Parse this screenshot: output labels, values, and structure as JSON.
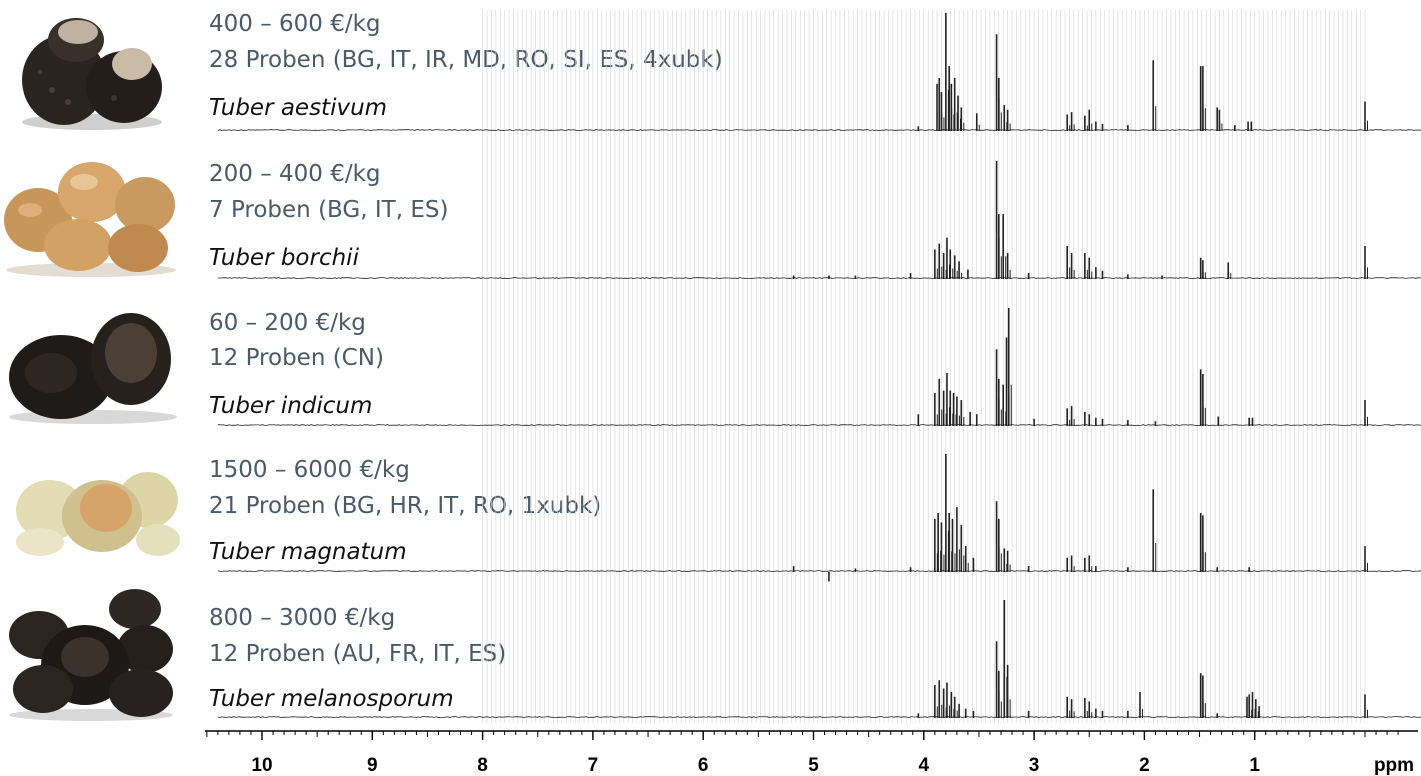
{
  "samples": [
    {
      "species": "Tuber aestivum",
      "price": "400 – 600 €/kg",
      "samples": "28 Proben (BG, IT, IR, MD, RO, SI, ES, 4xubk)",
      "photo": "dark-black-truffle-icon"
    },
    {
      "species": "Tuber borchii",
      "price": "200 – 400 €/kg",
      "samples": "7 Proben (BG, IT, ES)",
      "photo": "light-tan-truffle-icon"
    },
    {
      "species": "Tuber indicum",
      "price": "60 – 200 €/kg",
      "samples": "12 Proben (CN)",
      "photo": "dark-black-truffle-icon"
    },
    {
      "species": "Tuber magnatum",
      "price": "1500 – 6000 €/kg",
      "samples": "21 Proben (BG, HR, IT, RO, 1xubk)",
      "photo": "pale-white-truffle-icon"
    },
    {
      "species": "Tuber melanosporum",
      "price": "800 – 3000 €/kg",
      "samples": "12 Proben (AU, FR, IT, ES)",
      "photo": "dark-black-truffle-icon"
    }
  ],
  "chart_data": {
    "type": "line",
    "xlabel": "ppm",
    "x_reversed": true,
    "xlim": [
      10.5,
      -0.5
    ],
    "x_ticks": [
      10,
      9,
      8,
      7,
      6,
      5,
      4,
      3,
      2,
      1
    ],
    "grid": "vertical lines 8.0 to 0.0 ppm",
    "colors": {
      "spectrum": "#222222",
      "grid": "#d4d4d4",
      "axis": "#000000"
    },
    "series": [
      {
        "name": "Tuber aestivum",
        "peaks": [
          [
            4.05,
            0.04
          ],
          [
            3.88,
            0.4
          ],
          [
            3.86,
            0.45
          ],
          [
            3.84,
            0.33
          ],
          [
            3.8,
            1.0
          ],
          [
            3.77,
            0.55
          ],
          [
            3.75,
            0.4
          ],
          [
            3.72,
            0.45
          ],
          [
            3.69,
            0.3
          ],
          [
            3.66,
            0.2
          ],
          [
            3.52,
            0.15
          ],
          [
            3.34,
            0.82
          ],
          [
            3.32,
            0.45
          ],
          [
            3.27,
            0.22
          ],
          [
            3.24,
            0.18
          ],
          [
            2.7,
            0.14
          ],
          [
            2.66,
            0.16
          ],
          [
            2.54,
            0.13
          ],
          [
            2.5,
            0.18
          ],
          [
            2.44,
            0.08
          ],
          [
            2.38,
            0.06
          ],
          [
            2.15,
            0.05
          ],
          [
            1.92,
            0.6
          ],
          [
            1.49,
            0.55
          ],
          [
            1.47,
            0.55
          ],
          [
            1.34,
            0.2
          ],
          [
            1.32,
            0.18
          ],
          [
            1.18,
            0.05
          ],
          [
            1.06,
            0.08
          ],
          [
            1.03,
            0.08
          ],
          [
            0.0,
            0.25
          ]
        ]
      },
      {
        "name": "Tuber borchii",
        "peaks": [
          [
            5.18,
            0.03
          ],
          [
            4.86,
            0.03
          ],
          [
            4.62,
            0.03
          ],
          [
            4.12,
            0.05
          ],
          [
            3.9,
            0.25
          ],
          [
            3.86,
            0.3
          ],
          [
            3.82,
            0.22
          ],
          [
            3.79,
            0.35
          ],
          [
            3.76,
            0.25
          ],
          [
            3.72,
            0.2
          ],
          [
            3.68,
            0.15
          ],
          [
            3.6,
            0.08
          ],
          [
            3.34,
            1.0
          ],
          [
            3.32,
            0.55
          ],
          [
            3.28,
            0.55
          ],
          [
            3.24,
            0.22
          ],
          [
            3.05,
            0.05
          ],
          [
            2.7,
            0.28
          ],
          [
            2.66,
            0.22
          ],
          [
            2.54,
            0.22
          ],
          [
            2.5,
            0.18
          ],
          [
            2.44,
            0.1
          ],
          [
            2.38,
            0.07
          ],
          [
            2.15,
            0.04
          ],
          [
            1.84,
            0.03
          ],
          [
            1.49,
            0.18
          ],
          [
            1.47,
            0.16
          ],
          [
            1.24,
            0.14
          ],
          [
            0.0,
            0.28
          ]
        ]
      },
      {
        "name": "Tuber indicum",
        "peaks": [
          [
            4.05,
            0.1
          ],
          [
            3.9,
            0.28
          ],
          [
            3.86,
            0.4
          ],
          [
            3.82,
            0.3
          ],
          [
            3.79,
            0.45
          ],
          [
            3.76,
            0.3
          ],
          [
            3.73,
            0.28
          ],
          [
            3.7,
            0.25
          ],
          [
            3.66,
            0.22
          ],
          [
            3.58,
            0.12
          ],
          [
            3.52,
            0.1
          ],
          [
            3.34,
            0.65
          ],
          [
            3.32,
            0.4
          ],
          [
            3.28,
            0.35
          ],
          [
            3.25,
            0.75
          ],
          [
            3.23,
            1.0
          ],
          [
            3.0,
            0.06
          ],
          [
            2.7,
            0.15
          ],
          [
            2.66,
            0.17
          ],
          [
            2.54,
            0.12
          ],
          [
            2.5,
            0.1
          ],
          [
            2.44,
            0.07
          ],
          [
            2.38,
            0.06
          ],
          [
            2.15,
            0.05
          ],
          [
            1.9,
            0.04
          ],
          [
            1.49,
            0.48
          ],
          [
            1.47,
            0.44
          ],
          [
            1.33,
            0.08
          ],
          [
            1.05,
            0.07
          ],
          [
            1.02,
            0.07
          ],
          [
            0.0,
            0.22
          ]
        ]
      },
      {
        "name": "Tuber magnatum",
        "peaks": [
          [
            5.18,
            0.05
          ],
          [
            4.86,
            -0.08
          ],
          [
            4.62,
            0.03
          ],
          [
            4.12,
            0.04
          ],
          [
            3.9,
            0.45
          ],
          [
            3.87,
            0.5
          ],
          [
            3.84,
            0.42
          ],
          [
            3.8,
            1.0
          ],
          [
            3.77,
            0.5
          ],
          [
            3.74,
            0.45
          ],
          [
            3.7,
            0.55
          ],
          [
            3.66,
            0.4
          ],
          [
            3.62,
            0.22
          ],
          [
            3.55,
            0.12
          ],
          [
            3.34,
            0.6
          ],
          [
            3.32,
            0.45
          ],
          [
            3.27,
            0.2
          ],
          [
            3.24,
            0.18
          ],
          [
            3.05,
            0.05
          ],
          [
            2.7,
            0.12
          ],
          [
            2.66,
            0.14
          ],
          [
            2.54,
            0.12
          ],
          [
            2.5,
            0.14
          ],
          [
            2.44,
            0.05
          ],
          [
            2.15,
            0.04
          ],
          [
            1.92,
            0.7
          ],
          [
            1.49,
            0.5
          ],
          [
            1.47,
            0.48
          ],
          [
            1.34,
            0.04
          ],
          [
            1.05,
            0.04
          ],
          [
            0.0,
            0.22
          ]
        ]
      },
      {
        "name": "Tuber melanosporum",
        "peaks": [
          [
            4.05,
            0.04
          ],
          [
            3.9,
            0.28
          ],
          [
            3.86,
            0.32
          ],
          [
            3.82,
            0.25
          ],
          [
            3.79,
            0.3
          ],
          [
            3.75,
            0.22
          ],
          [
            3.72,
            0.18
          ],
          [
            3.68,
            0.12
          ],
          [
            3.62,
            0.08
          ],
          [
            3.55,
            0.06
          ],
          [
            3.34,
            0.65
          ],
          [
            3.32,
            0.4
          ],
          [
            3.27,
            1.0
          ],
          [
            3.24,
            0.45
          ],
          [
            3.05,
            0.06
          ],
          [
            2.7,
            0.18
          ],
          [
            2.66,
            0.16
          ],
          [
            2.54,
            0.17
          ],
          [
            2.5,
            0.14
          ],
          [
            2.44,
            0.08
          ],
          [
            2.38,
            0.06
          ],
          [
            2.15,
            0.06
          ],
          [
            2.04,
            0.22
          ],
          [
            1.49,
            0.38
          ],
          [
            1.47,
            0.36
          ],
          [
            1.34,
            0.04
          ],
          [
            1.07,
            0.18
          ],
          [
            1.05,
            0.2
          ],
          [
            1.02,
            0.22
          ],
          [
            0.99,
            0.16
          ],
          [
            0.96,
            0.1
          ],
          [
            0.0,
            0.2
          ]
        ]
      }
    ]
  }
}
